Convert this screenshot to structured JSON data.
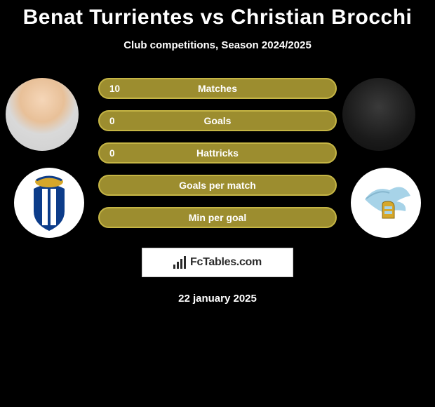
{
  "title": "Benat Turrientes vs Christian Brocchi",
  "subtitle": "Club competitions, Season 2024/2025",
  "date": "22 january 2025",
  "brand": {
    "text": "FcTables.com"
  },
  "colors": {
    "background": "#000000",
    "bar_fill": "#9c8d2f",
    "bar_border": "#c5b545",
    "text": "#ffffff",
    "logo_bg": "#ffffff",
    "logo_border": "#c8c8c8",
    "logo_text": "#2a2a2a"
  },
  "bar_style": {
    "height": 30,
    "gap": 16,
    "border_radius": 15,
    "border_width": 2,
    "label_fontsize": 14,
    "value_fontsize": 13.5
  },
  "stats": [
    {
      "label": "Matches",
      "left_value": "10",
      "right_value": ""
    },
    {
      "label": "Goals",
      "left_value": "0",
      "right_value": ""
    },
    {
      "label": "Hattricks",
      "left_value": "0",
      "right_value": ""
    },
    {
      "label": "Goals per match",
      "left_value": "",
      "right_value": ""
    },
    {
      "label": "Min per goal",
      "left_value": "",
      "right_value": ""
    }
  ],
  "players": {
    "left": {
      "name": "Benat Turrientes"
    },
    "right": {
      "name": "Christian Brocchi"
    }
  },
  "clubs": {
    "left": {
      "name": "Real Sociedad",
      "crest_colors": {
        "primary": "#0c3c8a",
        "accent": "#d6a72a",
        "stripe": "#ffffff"
      }
    },
    "right": {
      "name": "Lazio",
      "crest_colors": {
        "primary": "#a7d3e8",
        "accent": "#d6a72a",
        "wing": "#86b7cf"
      }
    }
  }
}
